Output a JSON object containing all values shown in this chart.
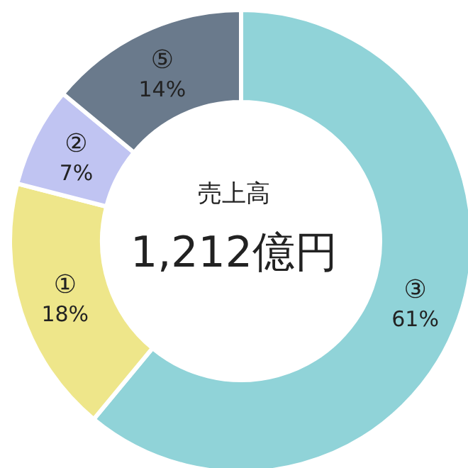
{
  "chart_data": {
    "type": "donut",
    "title": "売上高",
    "annotations": [
      "1,212億円"
    ],
    "categories": [
      "③",
      "①",
      "②",
      "⑤"
    ],
    "values": [
      61,
      18,
      7,
      14
    ],
    "colors": [
      "#90d3d8",
      "#eee68a",
      "#c0c4f2",
      "#6a7a8c"
    ],
    "value_labels": [
      "61%",
      "18%",
      "7%",
      "14%"
    ],
    "legend": false
  }
}
